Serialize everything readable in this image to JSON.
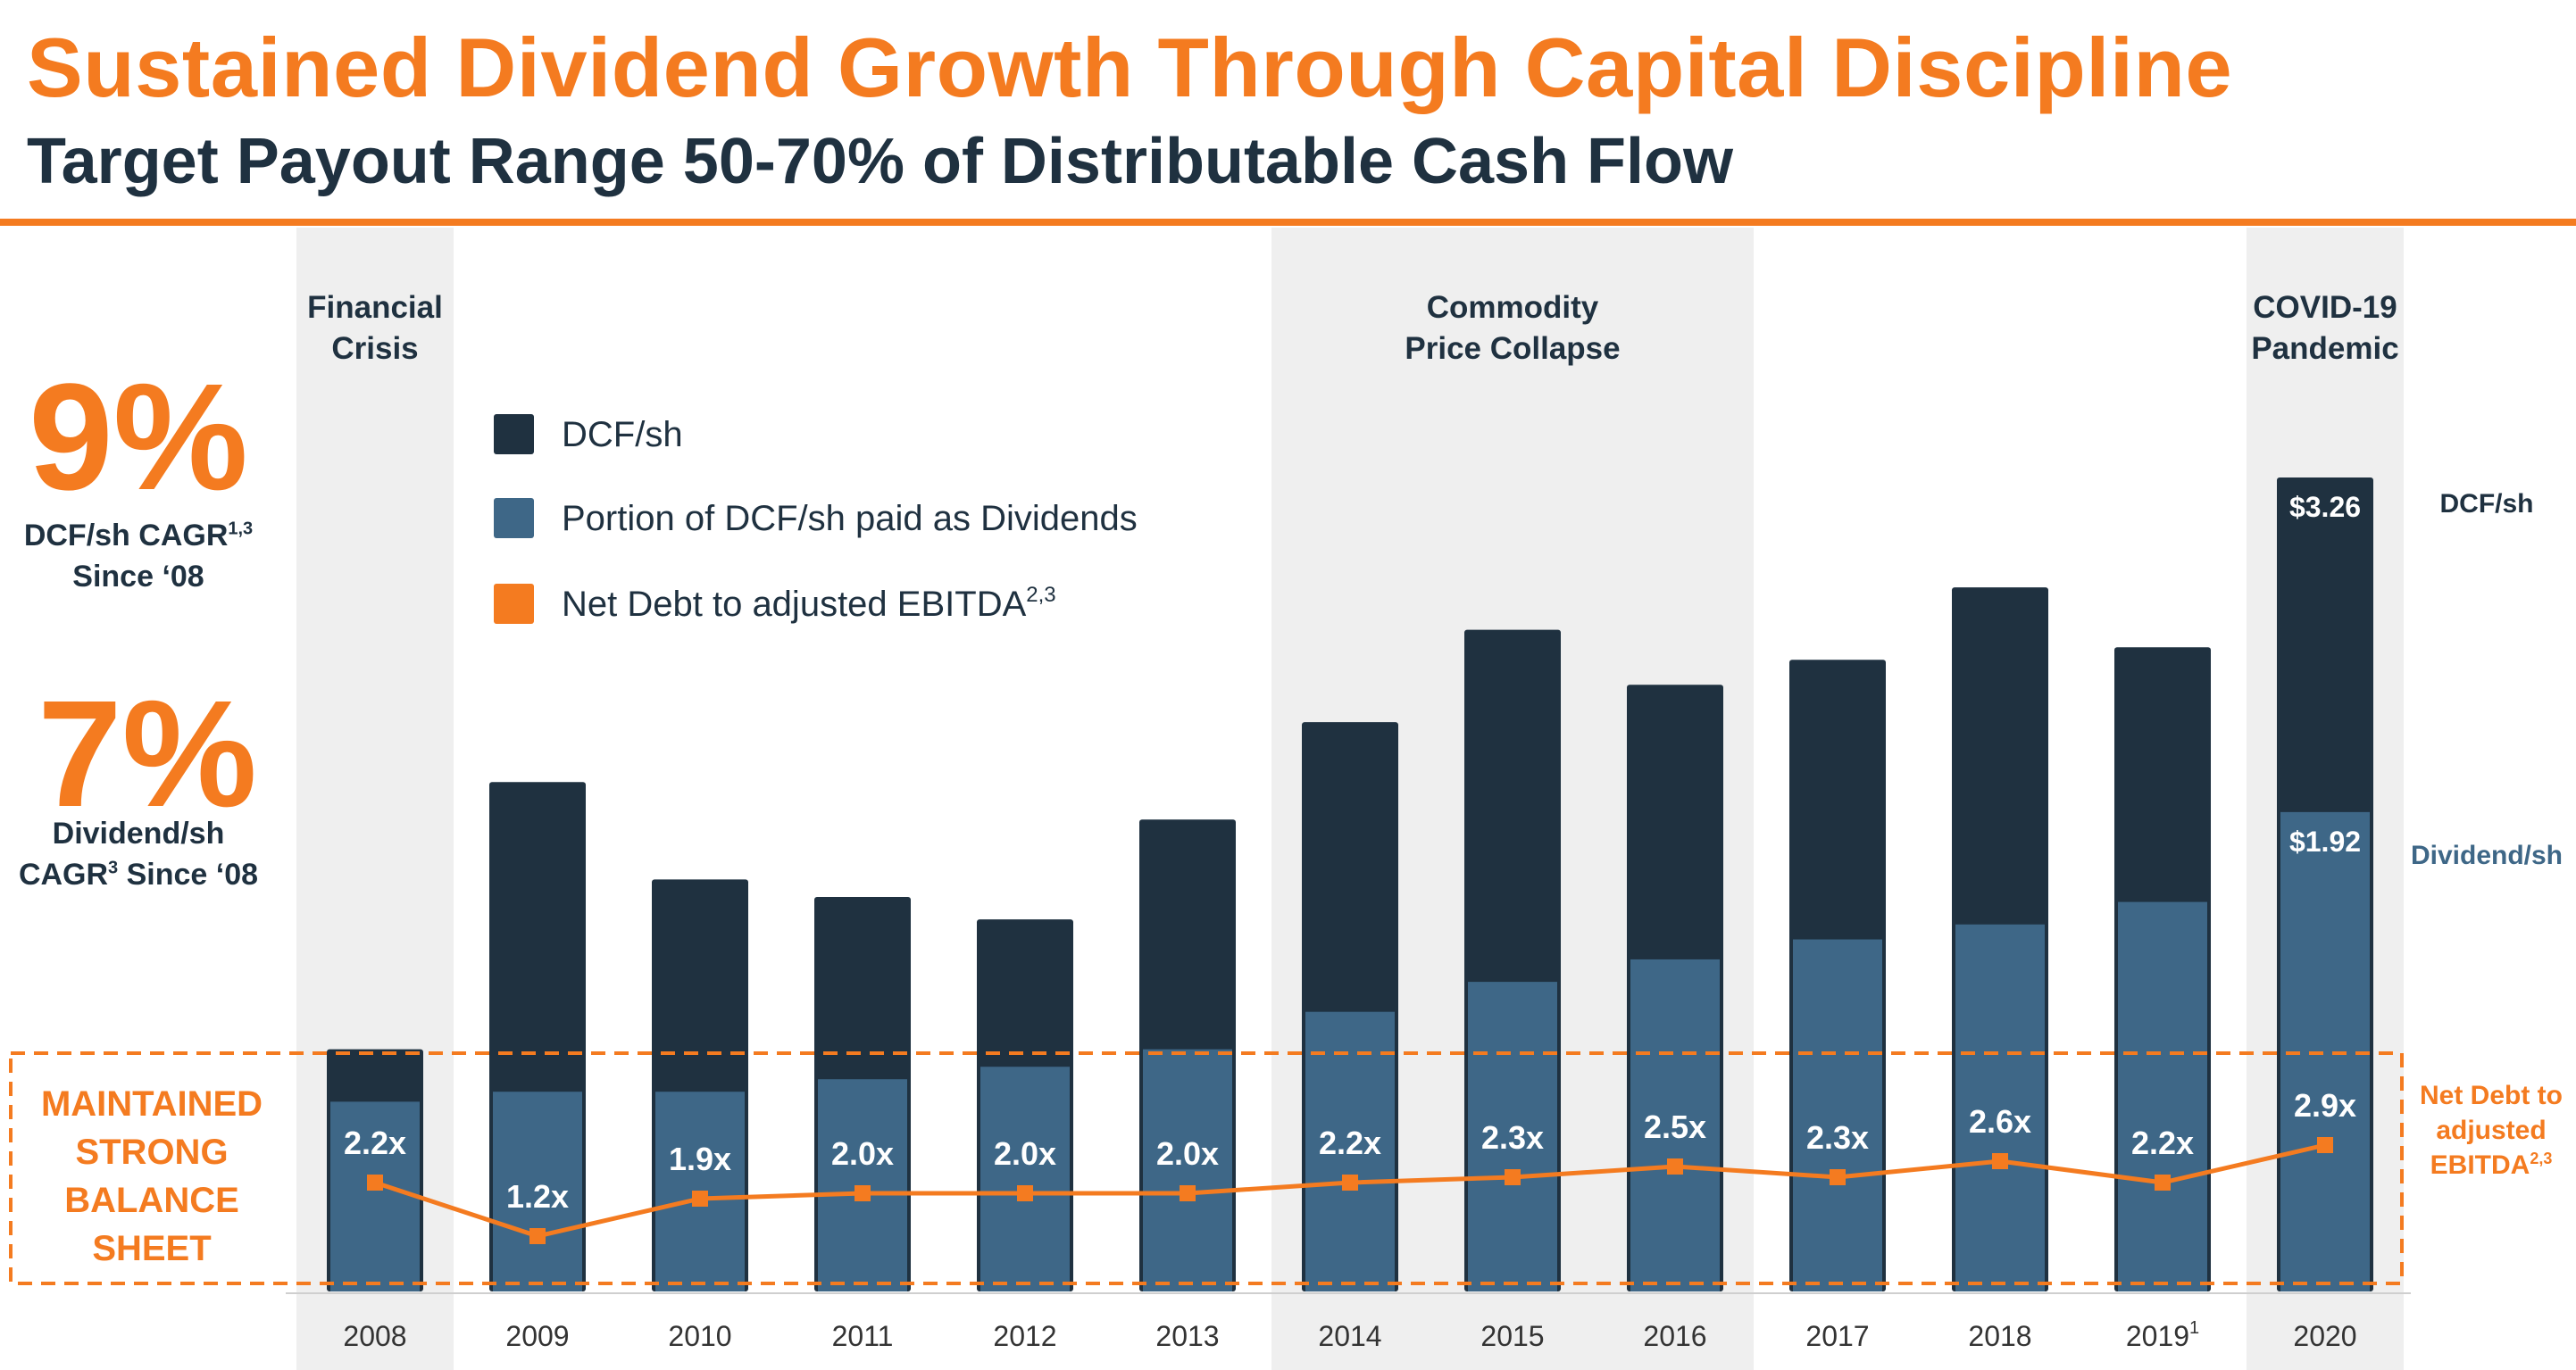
{
  "title": "Sustained Dividend Growth Through Capital Discipline",
  "subtitle": "Target Payout Range 50-70% of Distributable Cash Flow",
  "stats": {
    "dcf_cagr_value": "9%",
    "dcf_cagr_label_main": "DCF/sh CAGR",
    "dcf_cagr_label_sup": "1,3",
    "dcf_cagr_since": "Since ‘08",
    "div_cagr_value": "7%",
    "div_cagr_label_line1": "Dividend/sh",
    "div_cagr_label_main": "CAGR",
    "div_cagr_label_sup": "3",
    "div_cagr_since": " Since ‘08"
  },
  "balance_sheet_label": "MAINTAINED STRONG BALANCE SHEET",
  "right_labels": {
    "dcf": "DCF/sh",
    "dividend": "Dividend/sh",
    "ratio_main": "Net Debt to adjusted EBITDA",
    "ratio_sup": "2,3"
  },
  "colors": {
    "dcf": "#1f3140",
    "dividend": "#3e6787",
    "ratio": "#f47b20",
    "band": "#efefef"
  },
  "chart_data": {
    "type": "bar",
    "categories": [
      "2008",
      "2009",
      "2010",
      "2011",
      "2012",
      "2013",
      "2014",
      "2015",
      "2016",
      "2017",
      "2018",
      "2019",
      "2020"
    ],
    "category_superscripts": [
      "",
      "",
      "",
      "",
      "",
      "",
      "",
      "",
      "",
      "",
      "",
      "1",
      ""
    ],
    "series": [
      {
        "name": "DCF/sh",
        "values": [
          0.97,
          2.04,
          1.65,
          1.58,
          1.49,
          1.89,
          2.28,
          2.65,
          2.43,
          2.53,
          2.82,
          2.58,
          3.26
        ]
      },
      {
        "name": "Portion of DCF/sh paid as Dividends",
        "values": [
          0.76,
          0.8,
          0.8,
          0.85,
          0.9,
          0.97,
          1.12,
          1.24,
          1.33,
          1.41,
          1.47,
          1.56,
          1.92
        ]
      },
      {
        "name": "Net Debt to adjusted EBITDA",
        "values": [
          2.2,
          1.2,
          1.9,
          2.0,
          2.0,
          2.0,
          2.2,
          2.3,
          2.5,
          2.3,
          2.6,
          2.2,
          2.9
        ],
        "labels": [
          "2.2x",
          "1.2x",
          "1.9x",
          "2.0x",
          "2.0x",
          "2.0x",
          "2.2x",
          "2.3x",
          "2.5x",
          "2.3x",
          "2.6x",
          "2.2x",
          "2.9x"
        ]
      }
    ],
    "legend": [
      {
        "label": "DCF/sh",
        "sup": ""
      },
      {
        "label": "Portion of DCF/sh paid as Dividends",
        "sup": ""
      },
      {
        "label": "Net Debt to adjusted EBITDA",
        "sup": "2,3"
      }
    ],
    "bar_value_labels": {
      "2020_dcf": "$3.26",
      "2020_dividend": "$1.92"
    },
    "shaded_periods": [
      {
        "label_lines": [
          "Financial",
          "Crisis"
        ],
        "categories": [
          "2008"
        ]
      },
      {
        "label_lines": [
          "Commodity",
          "Price Collapse"
        ],
        "categories": [
          "2014",
          "2015",
          "2016"
        ]
      },
      {
        "label_lines": [
          "COVID-19",
          "Pandemic"
        ],
        "categories": [
          "2020"
        ]
      }
    ]
  }
}
